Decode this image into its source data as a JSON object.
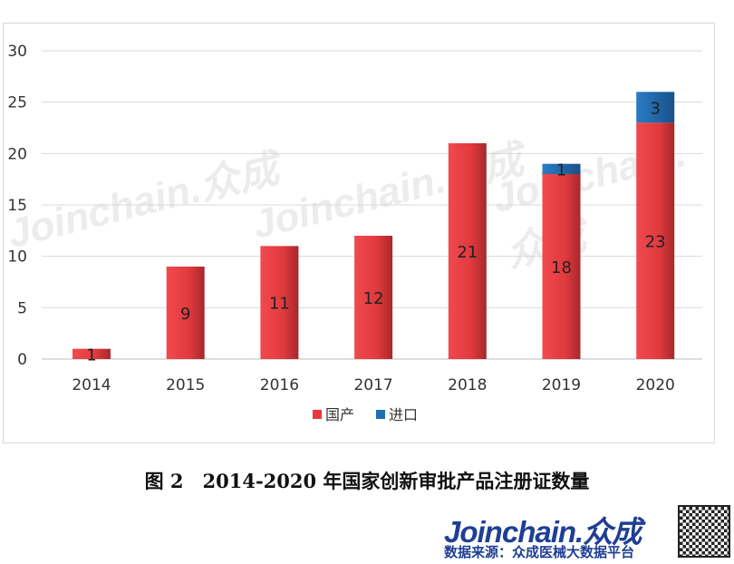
{
  "chart_data": {
    "type": "bar",
    "stacked": true,
    "categories": [
      "2014",
      "2015",
      "2016",
      "2017",
      "2018",
      "2019",
      "2020"
    ],
    "series": [
      {
        "name": "国产",
        "color": "#e8383d",
        "values": [
          1,
          9,
          11,
          12,
          21,
          18,
          23
        ]
      },
      {
        "name": "进口",
        "color": "#1f6eb5",
        "values": [
          0,
          0,
          0,
          0,
          0,
          1,
          3
        ]
      }
    ],
    "ylim": [
      0,
      30
    ],
    "yticks": [
      0,
      5,
      10,
      15,
      20,
      25,
      30
    ],
    "grid": true,
    "legend": "bottom"
  },
  "caption": "图 2　2014-2020 年国家创新审批产品注册证数量",
  "brand": {
    "logo": "Joinchain.众成",
    "watermark": "Joinchain.众成",
    "source": "数据来源：众成医械大数据平台"
  }
}
